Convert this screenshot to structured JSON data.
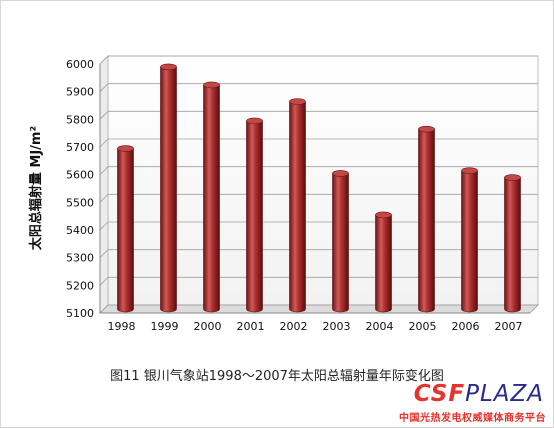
{
  "chart_data": {
    "type": "bar",
    "title": "",
    "xlabel": "",
    "ylabel": "太阳总辐射量 MJ/m²",
    "categories": [
      "1998",
      "1999",
      "2000",
      "2001",
      "2002",
      "2003",
      "2004",
      "2005",
      "2006",
      "2007"
    ],
    "series": [
      {
        "values": [
          5680,
          5975,
          5910,
          5780,
          5850,
          5590,
          5440,
          5750,
          5600,
          5575
        ]
      }
    ],
    "yticks": [
      5100,
      5200,
      5300,
      5400,
      5500,
      5600,
      5700,
      5800,
      5900,
      6000
    ],
    "ylim": [
      5100,
      6000
    ],
    "grid": true,
    "bar_style": "3d-cylinder",
    "colors": {
      "bar": "#b23232",
      "bar_dark": "#6e1414",
      "bar_light": "#e07a7a",
      "grid": "#a0a0a0",
      "axis": "#888888"
    }
  },
  "caption": "图11 银川气象站1998～2007年太阳总辐射量年际变化图",
  "watermark": {
    "brand_part1": "CSF",
    "brand_part2": "PLAZA",
    "subtitle": "中国光热发电权威媒体商务平台",
    "colors": {
      "red": "#e8322c",
      "blue": "#2b2b8f"
    }
  }
}
